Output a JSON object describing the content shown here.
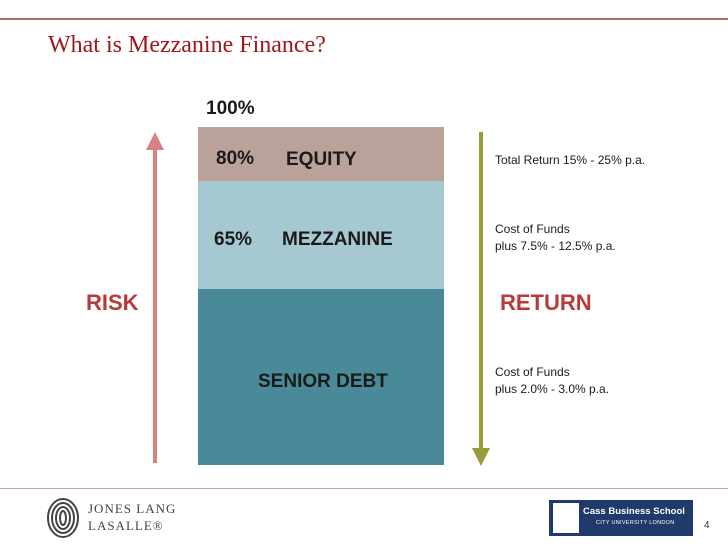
{
  "slide": {
    "title": "What is Mezzanine Finance?",
    "page_number": "4"
  },
  "percent_labels": {
    "top": "100%",
    "equity": "80%",
    "mezzanine": "65%"
  },
  "bands": {
    "equity": {
      "label": "EQUITY",
      "color": "#baa199"
    },
    "mezzanine": {
      "label": "MEZZANINE",
      "color": "#a6c8d1"
    },
    "senior_debt": {
      "label": "SENIOR DEBT",
      "color": "#4a8a98"
    }
  },
  "axes": {
    "risk": {
      "label": "RISK",
      "arrow_color": "#d98080",
      "direction": "up"
    },
    "return": {
      "label": "RETURN",
      "arrow_color": "#9a9a3a",
      "direction": "down"
    }
  },
  "returns": {
    "equity": {
      "line1": "Total Return 15% - 25% p.a."
    },
    "mezzanine": {
      "line1": "Cost of Funds",
      "line2": "plus 7.5% - 12.5% p.a."
    },
    "senior_debt": {
      "line1": "Cost of Funds",
      "line2": "plus 2.0% - 3.0% p.a."
    }
  },
  "footer": {
    "jll_line1": "JONES LANG",
    "jll_line2": "LASALLE®",
    "cass_name": "Cass Business School",
    "cass_sub": "CITY UNIVERSITY LONDON"
  }
}
